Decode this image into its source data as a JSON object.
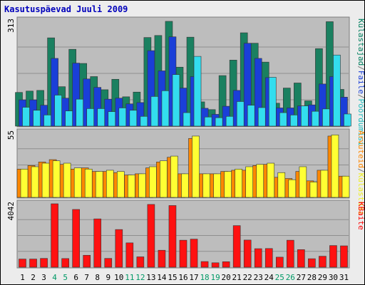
{
  "title": "Kasutuspäevad Juuli 2009",
  "colors": {
    "background": "#ececec",
    "panel": "#bdbdbd",
    "frame_dark": "#7d7d7d",
    "frame_light": "#ffffff",
    "gridline": "#8e8e8e",
    "title_text": "#0000bb",
    "day_normal": "#000000",
    "day_weekend": "#009966"
  },
  "chart_data": [
    {
      "type": "bar",
      "panel": "top",
      "max_label": "313",
      "ylim": [
        0,
        313
      ],
      "categories": [
        "1",
        "2",
        "3",
        "4",
        "5",
        "6",
        "7",
        "8",
        "9",
        "10",
        "11",
        "12",
        "13",
        "14",
        "15",
        "16",
        "17",
        "18",
        "19",
        "20",
        "21",
        "22",
        "23",
        "24",
        "25",
        "26",
        "27",
        "28",
        "29",
        "30",
        "31"
      ],
      "weekend_days": [
        "4",
        "5",
        "11",
        "12",
        "18",
        "19",
        "25",
        "26"
      ],
      "right_label_parts": [
        {
          "text": "Külastajad",
          "color": "#007f5f"
        },
        {
          "text": "/",
          "color": "#777777"
        },
        {
          "text": "Faile",
          "color": "#1a3fd8"
        },
        {
          "text": "/",
          "color": "#777777"
        },
        {
          "text": "Pöördumisi",
          "color": "#22bdbd"
        }
      ],
      "series": [
        {
          "name": "Külastajad",
          "color": "#1a8060",
          "values": [
            100,
            104,
            106,
            262,
            117,
            228,
            186,
            147,
            108,
            139,
            87,
            101,
            263,
            269,
            311,
            175,
            264,
            72,
            49,
            150,
            196,
            277,
            246,
            190,
            68,
            113,
            128,
            75,
            230,
            310,
            109
          ]
        },
        {
          "name": "Faile",
          "color": "#1a3fd8",
          "values": [
            78,
            78,
            62,
            201,
            83,
            187,
            140,
            115,
            80,
            83,
            66,
            70,
            224,
            164,
            265,
            113,
            147,
            53,
            35,
            59,
            106,
            246,
            201,
            144,
            54,
            54,
            60,
            63,
            125,
            147,
            86
          ]
        },
        {
          "name": "Pöördumisi",
          "color": "#33ddee",
          "values": [
            56,
            47,
            33,
            92,
            45,
            80,
            52,
            52,
            43,
            54,
            47,
            29,
            88,
            105,
            153,
            40,
            207,
            27,
            25,
            29,
            73,
            62,
            55,
            145,
            40,
            33,
            60,
            44,
            51,
            211,
            36
          ]
        }
      ]
    },
    {
      "type": "bar",
      "panel": "middle",
      "max_label": "55",
      "ylim": [
        0,
        55
      ],
      "right_label_parts": [
        {
          "text": "Arvuteid",
          "color": "#ff8800"
        },
        {
          "text": "/",
          "color": "#777777"
        },
        {
          "text": "Külastusi",
          "color": "#eeee22"
        }
      ],
      "series": [
        {
          "name": "Arvuteid",
          "color": "#ff8800",
          "values": [
            24,
            27,
            30,
            32,
            28,
            24,
            25,
            22,
            22,
            21,
            19,
            20,
            25,
            30,
            34,
            20,
            50,
            20,
            20,
            22,
            23,
            23,
            27,
            28,
            17,
            16,
            22,
            14,
            23,
            52,
            18
          ]
        },
        {
          "name": "Külastusi",
          "color": "#ffff33",
          "values": [
            24,
            26,
            29,
            31,
            29,
            25,
            24,
            22,
            23,
            22,
            19,
            20,
            26,
            31,
            35,
            20,
            52,
            20,
            20,
            22,
            24,
            26,
            28,
            29,
            21,
            15,
            26,
            13,
            23,
            53,
            18
          ]
        }
      ]
    },
    {
      "type": "bar",
      "panel": "bottom",
      "max_label": "4042",
      "ylim": [
        0,
        4042
      ],
      "right_label_parts": [
        {
          "text": "KBaite",
          "color": "#ff0000"
        }
      ],
      "series": [
        {
          "name": "KBaite",
          "color": "#ff1111",
          "values": [
            520,
            520,
            560,
            4042,
            550,
            3680,
            760,
            3080,
            560,
            2400,
            1550,
            660,
            4000,
            1080,
            3930,
            1720,
            1790,
            360,
            280,
            350,
            2650,
            1730,
            1180,
            1190,
            640,
            1720,
            1120,
            540,
            700,
            1380,
            1360
          ]
        }
      ]
    }
  ]
}
